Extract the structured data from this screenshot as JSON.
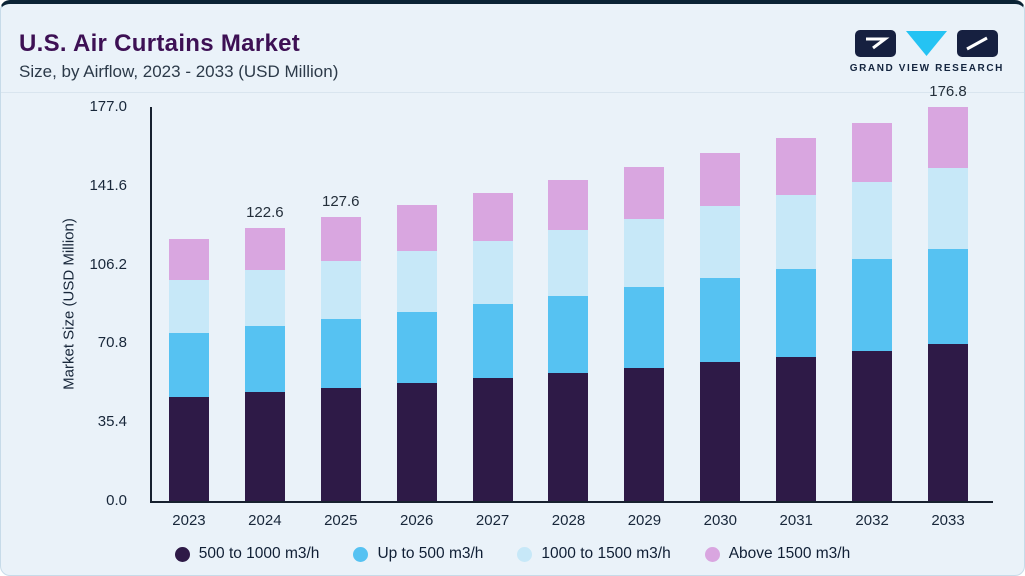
{
  "header": {
    "title": "U.S. Air Curtains Market",
    "subtitle": "Size, by Airflow, 2023 - 2033 (USD Million)"
  },
  "logo": {
    "text": "GRAND VIEW RESEARCH",
    "colors": {
      "dark": "#162040",
      "cyan": "#25c3f3"
    }
  },
  "colors": {
    "background": "#eaf2f9",
    "top_border": "#0b2335",
    "title": "#3d1054",
    "axis": "#17212f",
    "text": "#18273a"
  },
  "chart_data": {
    "type": "bar",
    "stacked": true,
    "title": "U.S. Air Curtains Market",
    "subtitle": "Size, by Airflow, 2023 - 2033 (USD Million)",
    "xlabel": "",
    "ylabel": "Market Size (USD Million)",
    "unit": "USD Million",
    "ylim": [
      0,
      177.0
    ],
    "yticks": [
      0.0,
      35.4,
      70.8,
      106.2,
      141.6,
      177.0
    ],
    "ytick_labels": [
      "0.0",
      "35.4",
      "70.8",
      "106.2",
      "141.6",
      "177.0"
    ],
    "grid": false,
    "legend_position": "bottom",
    "categories": [
      "2023",
      "2024",
      "2025",
      "2026",
      "2027",
      "2028",
      "2029",
      "2030",
      "2031",
      "2032",
      "2033"
    ],
    "series": [
      {
        "name": "500 to 1000 m3/h",
        "color": "#2e1a47",
        "values": [
          46.8,
          48.8,
          50.8,
          52.9,
          55.1,
          57.4,
          59.8,
          62.3,
          64.9,
          67.5,
          70.4
        ]
      },
      {
        "name": "Up to 500 m3/h",
        "color": "#56c2f2",
        "values": [
          28.5,
          29.7,
          30.9,
          32.2,
          33.5,
          34.9,
          36.3,
          37.9,
          39.4,
          41.1,
          42.8
        ]
      },
      {
        "name": "1000 to 1500 m3/h",
        "color": "#c7e8f8",
        "values": [
          24.1,
          25.1,
          26.2,
          27.3,
          28.4,
          29.6,
          30.8,
          32.1,
          33.4,
          34.8,
          36.2
        ]
      },
      {
        "name": "Above 1500 m3/h",
        "color": "#d9a6e0",
        "values": [
          18.2,
          19.0,
          19.8,
          20.6,
          21.5,
          22.4,
          23.3,
          24.2,
          25.3,
          26.3,
          27.4
        ]
      }
    ],
    "totals": [
      117.6,
      122.6,
      127.6,
      133.0,
      138.5,
      144.3,
      150.2,
      156.5,
      163.0,
      169.7,
      176.8
    ],
    "bar_labels": [
      "",
      "122.6",
      "127.6",
      "",
      "",
      "",
      "",
      "",
      "",
      "",
      "176.8"
    ]
  }
}
